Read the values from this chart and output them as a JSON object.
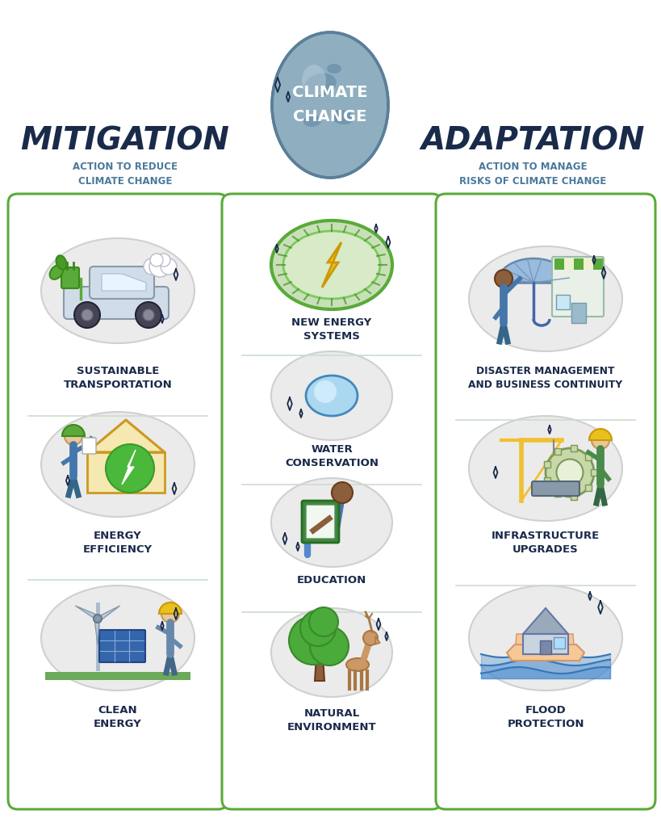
{
  "bg_color": "#ffffff",
  "globe_color": "#8fafc0",
  "globe_edge": "#5a7f99",
  "left_title": "MITIGATION",
  "left_subtitle": "ACTION TO REDUCE\nCLIMATE CHANGE",
  "right_title": "ADAPTATION",
  "right_subtitle": "ACTION TO MANAGE\nRISKS OF CLIMATE CHANGE",
  "left_items": [
    "SUSTAINABLE\nTRANSPORTATION",
    "ENERGY\nEFFICIENCY",
    "CLEAN\nENERGY"
  ],
  "center_items": [
    "NEW ENERGY\nSYSTEMS",
    "WATER\nCONSERVATION",
    "EDUCATION",
    "NATURAL\nENVIRONMENT"
  ],
  "right_items": [
    "DISASTER MANAGEMENT\nAND BUSINESS CONTINUITY",
    "INFRASTRUCTURE\nUPGRADES",
    "FLOOD\nPROTECTION"
  ],
  "box_color": "#5aaa3a",
  "spark_color": "#1a2a4a",
  "label_color": "#1a2a4a",
  "header_color": "#1a2a4a",
  "subtitle_color": "#4a7a9b",
  "gray_circle": "#ebebeb",
  "green_circle": "#d5e8c8"
}
